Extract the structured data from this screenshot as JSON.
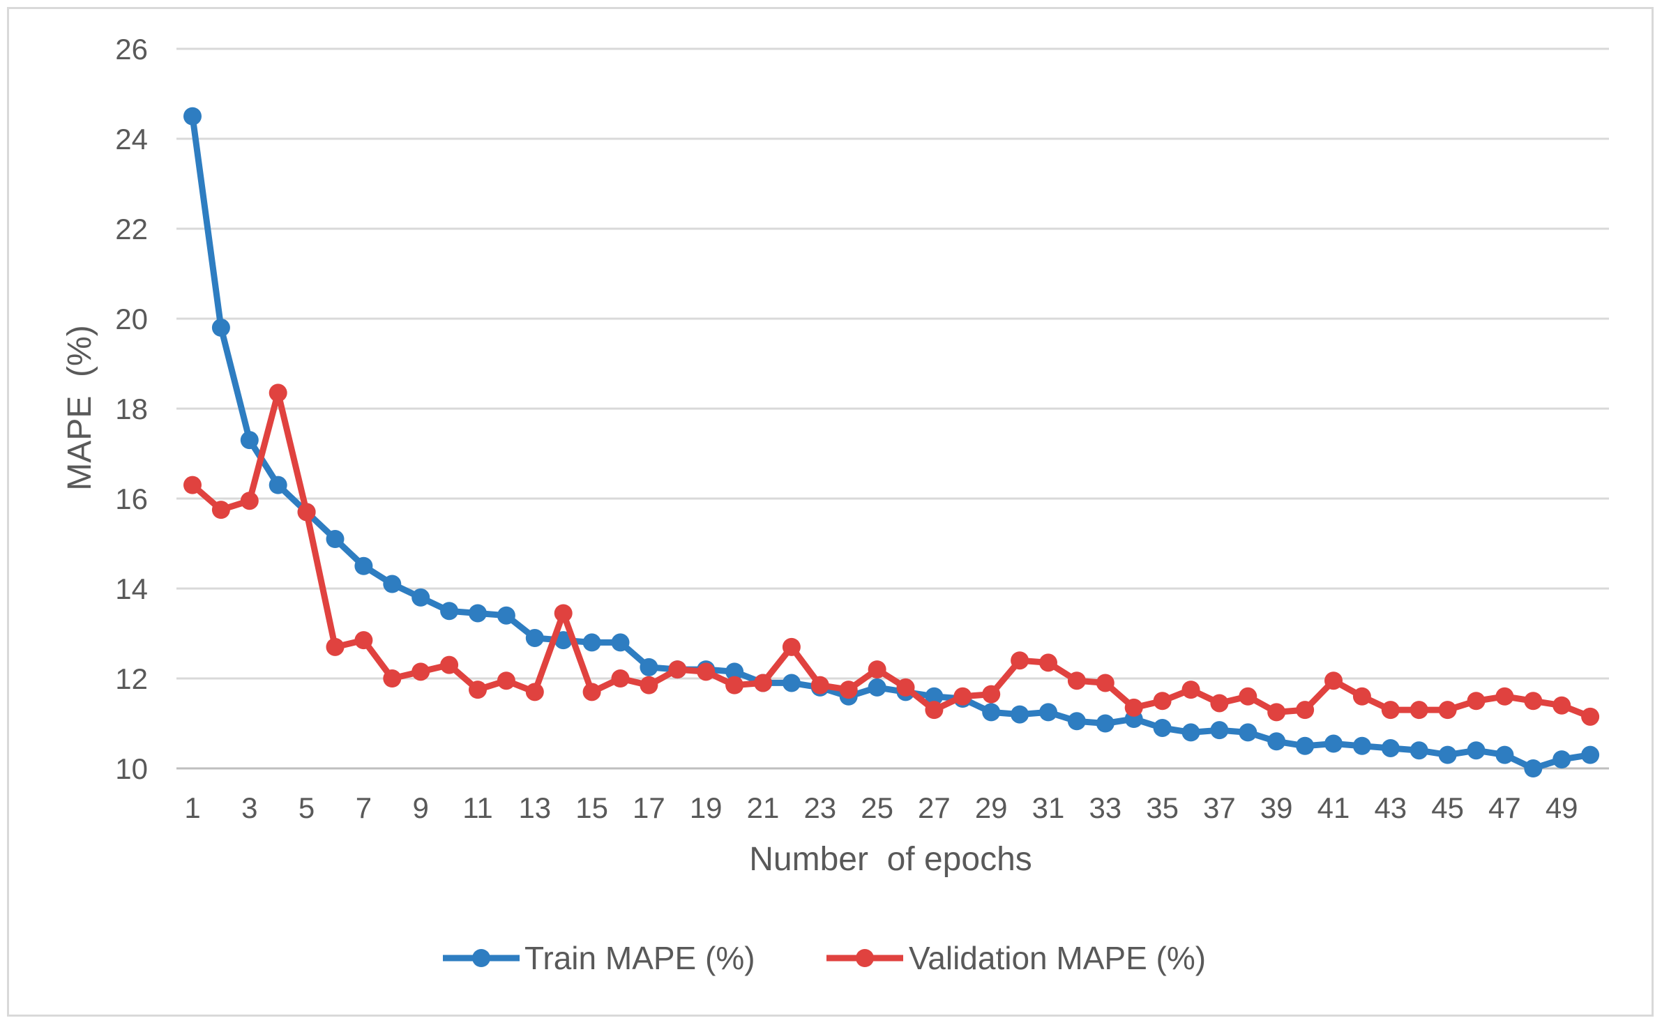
{
  "chart_data": {
    "type": "line",
    "title": "",
    "xlabel": "Number  of epochs",
    "ylabel": "MAPE  (%)",
    "ylim": [
      10,
      26
    ],
    "yticks": [
      10,
      12,
      14,
      16,
      18,
      20,
      22,
      24,
      26
    ],
    "x": [
      1,
      2,
      3,
      4,
      5,
      6,
      7,
      8,
      9,
      10,
      11,
      12,
      13,
      14,
      15,
      16,
      17,
      18,
      19,
      20,
      21,
      22,
      23,
      24,
      25,
      26,
      27,
      28,
      29,
      30,
      31,
      32,
      33,
      34,
      35,
      36,
      37,
      38,
      39,
      40,
      41,
      42,
      43,
      44,
      45,
      46,
      47,
      48,
      49,
      50
    ],
    "xtick_labels": [
      "1",
      "3",
      "5",
      "7",
      "9",
      "11",
      "13",
      "15",
      "17",
      "19",
      "21",
      "23",
      "25",
      "27",
      "29",
      "31",
      "33",
      "35",
      "37",
      "39",
      "41",
      "43",
      "45",
      "47",
      "49"
    ],
    "grid": true,
    "legend_position": "bottom",
    "series": [
      {
        "name": "Train MAPE (%)",
        "color": "#2e7dc1",
        "values": [
          24.5,
          19.8,
          17.3,
          16.3,
          15.7,
          15.1,
          14.5,
          14.1,
          13.8,
          13.5,
          13.45,
          13.4,
          12.9,
          12.85,
          12.8,
          12.8,
          12.25,
          12.2,
          12.2,
          12.15,
          11.9,
          11.9,
          11.8,
          11.6,
          11.8,
          11.7,
          11.6,
          11.55,
          11.25,
          11.2,
          11.25,
          11.05,
          11.0,
          11.1,
          10.9,
          10.8,
          10.85,
          10.8,
          10.6,
          10.5,
          10.55,
          10.5,
          10.45,
          10.4,
          10.3,
          10.4,
          10.3,
          10.0,
          10.2,
          10.3
        ]
      },
      {
        "name": "Validation MAPE (%)",
        "color": "#e0423f",
        "values": [
          16.3,
          15.75,
          15.95,
          18.35,
          15.7,
          12.7,
          12.85,
          12.0,
          12.15,
          12.3,
          11.75,
          11.95,
          11.7,
          13.45,
          11.7,
          12.0,
          11.85,
          12.2,
          12.15,
          11.85,
          11.9,
          12.7,
          11.85,
          11.75,
          12.2,
          11.8,
          11.3,
          11.6,
          11.65,
          12.4,
          12.35,
          11.95,
          11.9,
          11.35,
          11.5,
          11.75,
          11.45,
          11.6,
          11.25,
          11.3,
          11.95,
          11.6,
          11.3,
          11.3,
          11.3,
          11.5,
          11.6,
          11.5,
          11.4,
          11.15
        ]
      }
    ]
  }
}
